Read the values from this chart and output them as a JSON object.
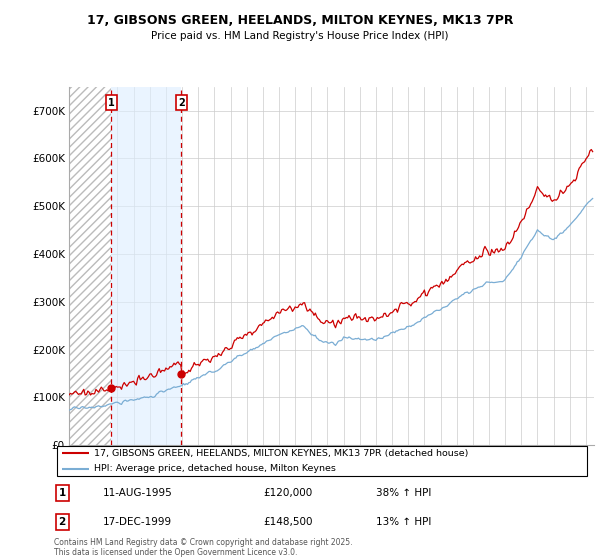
{
  "title_line1": "17, GIBSONS GREEN, HEELANDS, MILTON KEYNES, MK13 7PR",
  "title_line2": "Price paid vs. HM Land Registry's House Price Index (HPI)",
  "legend_line1": "17, GIBSONS GREEN, HEELANDS, MILTON KEYNES, MK13 7PR (detached house)",
  "legend_line2": "HPI: Average price, detached house, Milton Keynes",
  "annotation1_date": "11-AUG-1995",
  "annotation1_price": "£120,000",
  "annotation1_hpi": "38% ↑ HPI",
  "annotation2_date": "17-DEC-1999",
  "annotation2_price": "£148,500",
  "annotation2_hpi": "13% ↑ HPI",
  "footnote": "Contains HM Land Registry data © Crown copyright and database right 2025.\nThis data is licensed under the Open Government Licence v3.0.",
  "property_color": "#cc0000",
  "hpi_color": "#7aadd4",
  "purchase1_year": 1995.62,
  "purchase1_price": 120000,
  "purchase2_year": 1999.96,
  "purchase2_price": 148500,
  "ylim_max": 750000,
  "ylabel_ticks": [
    0,
    100000,
    200000,
    300000,
    400000,
    500000,
    600000,
    700000
  ],
  "hatch_color": "#cccccc",
  "fill_between_color": "#ddeeff",
  "grid_color": "#cccccc",
  "chart_bg": "#ffffff"
}
